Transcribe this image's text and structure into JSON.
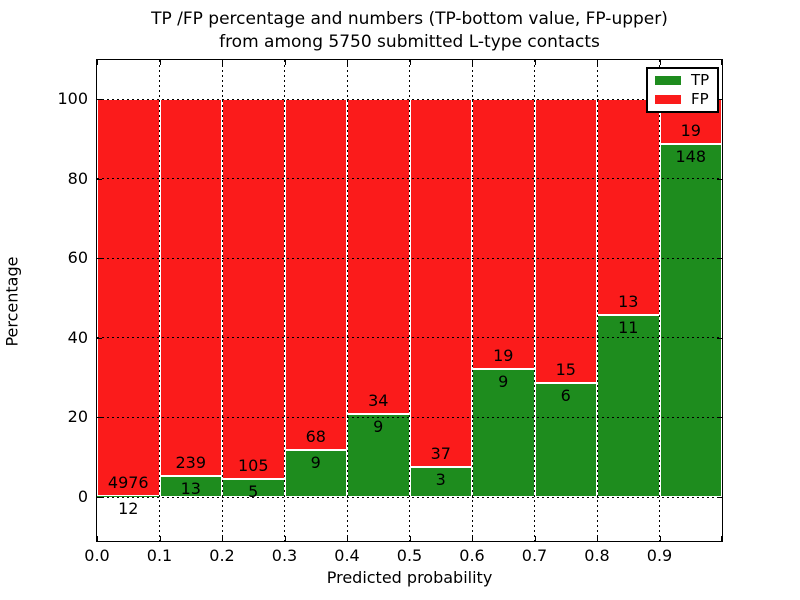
{
  "figure": {
    "background": "#ffffff"
  },
  "chart_data": {
    "type": "bar",
    "stacked": true,
    "normalized_to_percent": true,
    "title_line1": "TP /FP percentage and numbers (TP-bottom value, FP-upper)",
    "title_line2": "from among 5750 submitted L-type contacts",
    "xlabel": "Predicted probability",
    "ylabel": "Percentage",
    "total_contacts": 5750,
    "bin_width": 0.1,
    "categories": [
      "0.0-0.1",
      "0.1-0.2",
      "0.2-0.3",
      "0.3-0.4",
      "0.4-0.5",
      "0.5-0.6",
      "0.6-0.7",
      "0.7-0.8",
      "0.8-0.9",
      "0.9-1.0"
    ],
    "series": [
      {
        "name": "TP",
        "color": "#1e8c1e",
        "counts": [
          12,
          13,
          5,
          9,
          9,
          3,
          9,
          6,
          11,
          148
        ]
      },
      {
        "name": "FP",
        "color": "#fb1b1b",
        "counts": [
          4976,
          239,
          105,
          68,
          34,
          37,
          19,
          15,
          13,
          19
        ]
      }
    ],
    "x_tick_labels": [
      "0.0",
      "0.1",
      "0.2",
      "0.3",
      "0.4",
      "0.5",
      "0.6",
      "0.7",
      "0.8",
      "0.9"
    ],
    "y_tick_labels": [
      "0",
      "20",
      "40",
      "60",
      "80",
      "100"
    ],
    "y_tick_values": [
      0,
      20,
      40,
      60,
      80,
      100
    ],
    "xlim": [
      0.0,
      1.0
    ],
    "ylim": [
      -11,
      110
    ],
    "grid": "dotted",
    "grid_color": "#000000",
    "bar_edge_color": "#ffffff",
    "legend": {
      "position": "upper right",
      "entries": [
        {
          "label": "TP",
          "color": "#1e8c1e"
        },
        {
          "label": "FP",
          "color": "#fb1b1b"
        }
      ]
    }
  }
}
